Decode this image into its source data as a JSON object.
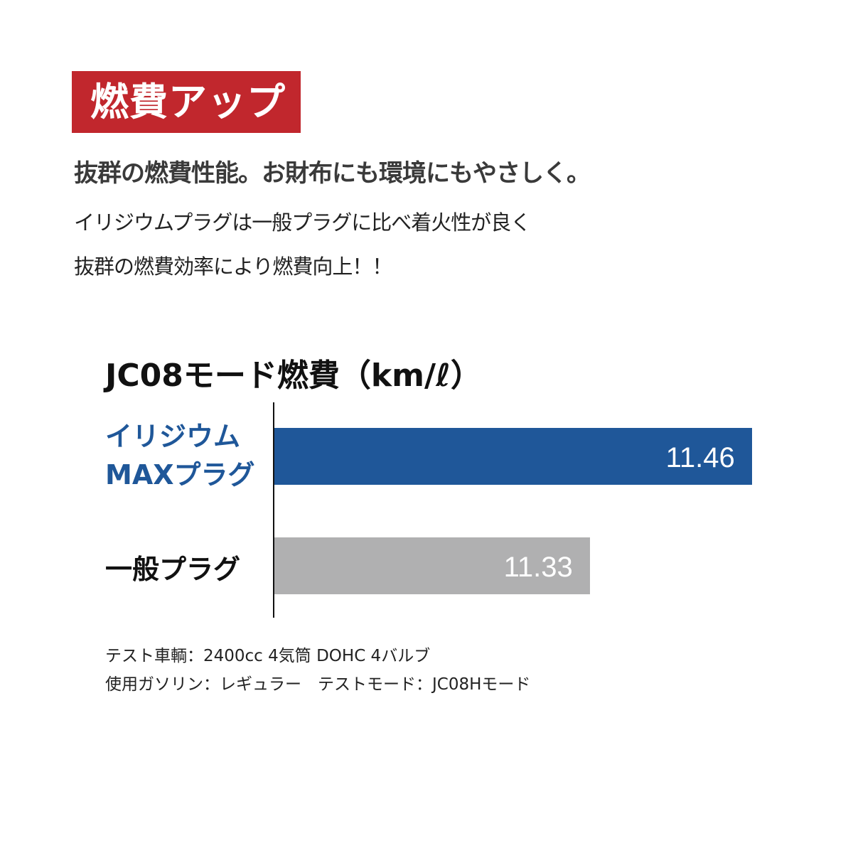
{
  "badge": "燃費アップ",
  "headline": "抜群の燃費性能。お財布にも環境にもやさしく。",
  "body_lines": [
    "イリジウムプラグは一般プラグに比べ着火性が良く",
    "抜群の燃費効率により燃費向上！！"
  ],
  "colors": {
    "badge": "#c1272d",
    "iridium": "#1f5799",
    "standard": "#b0b0b1"
  },
  "chart_data": {
    "type": "bar",
    "orientation": "horizontal",
    "title": "JC08モード燃費（km/ℓ）",
    "categories": [
      "イリジウムMAXプラグ",
      "一般プラグ"
    ],
    "category_lines": [
      [
        "イリジウム",
        "MAXプラグ"
      ],
      [
        "一般プラグ"
      ]
    ],
    "values": [
      11.46,
      11.33
    ],
    "value_labels": [
      "11.46",
      "11.33"
    ],
    "grid": false
  },
  "notes": [
    "テスト車輌：2400cc 4気筒 DOHC 4バルブ",
    "使用ガソリン：レギュラー　テストモード：JC08Hモード"
  ]
}
